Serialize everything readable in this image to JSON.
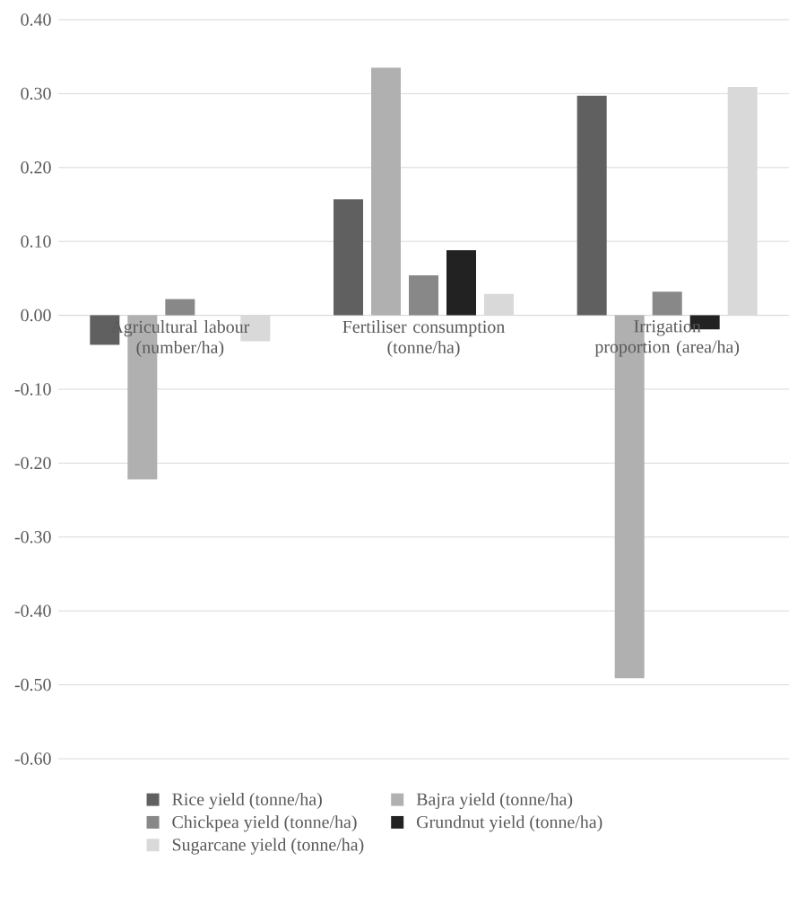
{
  "chart_data": {
    "type": "bar",
    "categories": [
      "Agricultural labour (number/ha)",
      "Fertiliser consumption (tonne/ha)",
      "Irrigation proportion (area/ha)"
    ],
    "series": [
      {
        "name": "Rice yield (tonne/ha)",
        "color": "#606060",
        "values": [
          -0.04,
          0.157,
          0.297
        ]
      },
      {
        "name": "Bajra yield (tonne/ha)",
        "color": "#b0b0b0",
        "values": [
          -0.222,
          0.335,
          -0.491
        ]
      },
      {
        "name": "Chickpea yield (tonne/ha)",
        "color": "#888888",
        "values": [
          0.022,
          0.054,
          0.032
        ]
      },
      {
        "name": "Grundnut yield (tonne/ha)",
        "color": "#222222",
        "values": [
          0.0,
          0.088,
          -0.019
        ]
      },
      {
        "name": "Sugarcane yield (tonne/ha)",
        "color": "#d9d9d9",
        "values": [
          -0.035,
          0.029,
          0.309
        ]
      }
    ],
    "ylim": [
      -0.6,
      0.4
    ],
    "yticks": [
      {
        "value": -0.6,
        "label": "-0.60"
      },
      {
        "value": -0.5,
        "label": "-0.50"
      },
      {
        "value": -0.4,
        "label": "-0.40"
      },
      {
        "value": -0.3,
        "label": "-0.30"
      },
      {
        "value": -0.2,
        "label": "-0.20"
      },
      {
        "value": -0.1,
        "label": "-0.10"
      },
      {
        "value": 0.0,
        "label": "0.00"
      },
      {
        "value": 0.1,
        "label": "0.10"
      },
      {
        "value": 0.2,
        "label": "0.20"
      },
      {
        "value": 0.3,
        "label": "0.30"
      },
      {
        "value": 0.4,
        "label": "0.40"
      }
    ],
    "grid": "y",
    "legend": "bottom"
  }
}
